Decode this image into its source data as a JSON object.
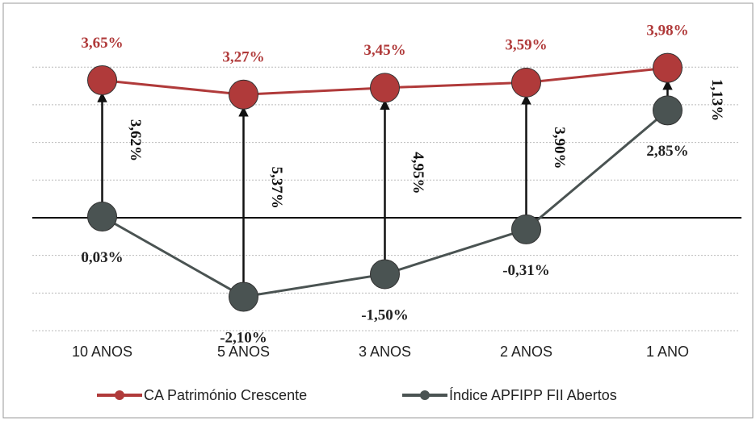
{
  "chart_data": {
    "type": "line",
    "categories": [
      "10 ANOS",
      "5 ANOS",
      "3 ANOS",
      "2 ANOS",
      "1 ANO"
    ],
    "series": [
      {
        "name": "CA Património Crescente",
        "color": "#b03a3a",
        "values": [
          3.65,
          3.27,
          3.45,
          3.59,
          3.98
        ],
        "value_labels": [
          "3,65%",
          "3,27%",
          "3,45%",
          "3,59%",
          "3,98%"
        ]
      },
      {
        "name": "Índice APFIPP FII Abertos",
        "color": "#4a5352",
        "values": [
          0.03,
          -2.1,
          -1.5,
          -0.31,
          2.85
        ],
        "value_labels": [
          "0,03%",
          "-2,10%",
          "-1,50%",
          "-0,31%",
          "2,85%"
        ]
      }
    ],
    "differences": {
      "values": [
        3.62,
        5.37,
        4.95,
        3.9,
        1.13
      ],
      "value_labels": [
        "3,62%",
        "5,37%",
        "4,95%",
        "3,90%",
        "1,13%"
      ]
    },
    "ylim": [
      -3,
      5
    ],
    "yticks": [
      -3,
      -2,
      -1,
      0,
      1,
      2,
      3,
      4
    ],
    "grid": true,
    "legend": "bottom"
  }
}
